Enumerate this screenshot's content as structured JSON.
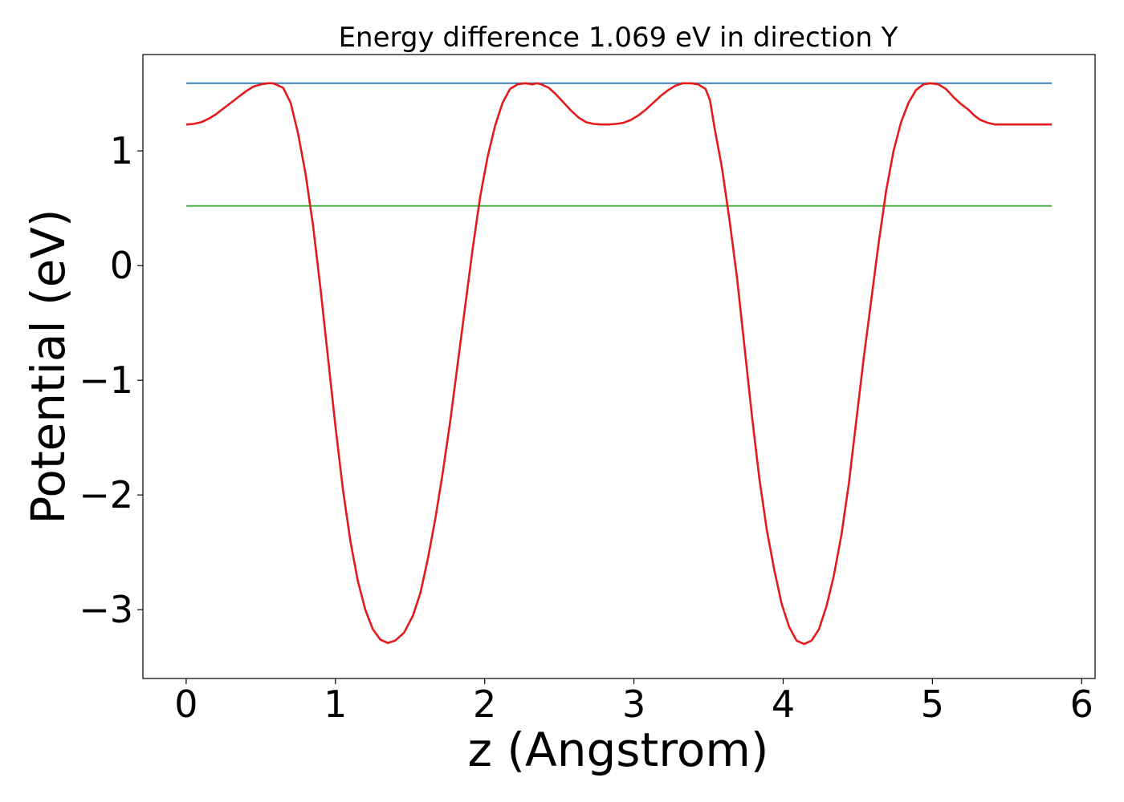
{
  "chart_data": {
    "type": "line",
    "title": "Energy difference 1.069 eV in direction Y",
    "xlabel": "z (Angstrom)",
    "ylabel": "Potential (eV)",
    "xlim": [
      -0.29,
      6.09
    ],
    "ylim": [
      -3.6,
      1.84
    ],
    "xticks": [
      0,
      1,
      2,
      3,
      4,
      5,
      6
    ],
    "xtick_labels": [
      "0",
      "1",
      "2",
      "3",
      "4",
      "5",
      "6"
    ],
    "yticks": [
      -3,
      -2,
      -1,
      0,
      1
    ],
    "ytick_labels": [
      "−3",
      "−2",
      "−1",
      "0",
      "1"
    ],
    "grid": false,
    "series": [
      {
        "color": "#e41a1c",
        "x": [
          0.0,
          0.05,
          0.1,
          0.15,
          0.2,
          0.25,
          0.3,
          0.35,
          0.4,
          0.45,
          0.5,
          0.55,
          0.58,
          0.6,
          0.65,
          0.7,
          0.75,
          0.8,
          0.85,
          0.9,
          0.95,
          1.0,
          1.05,
          1.1,
          1.15,
          1.2,
          1.25,
          1.3,
          1.35,
          1.4,
          1.46,
          1.52,
          1.57,
          1.62,
          1.67,
          1.72,
          1.77,
          1.82,
          1.87,
          1.92,
          1.97,
          2.02,
          2.07,
          2.12,
          2.17,
          2.22,
          2.27,
          2.32,
          2.35,
          2.38,
          2.43,
          2.48,
          2.53,
          2.58,
          2.63,
          2.68,
          2.73,
          2.78,
          2.83,
          2.88,
          2.93,
          2.98,
          3.03,
          3.08,
          3.13,
          3.18,
          3.23,
          3.28,
          3.33,
          3.38,
          3.43,
          3.48,
          3.51,
          3.54,
          3.59,
          3.64,
          3.69,
          3.74,
          3.79,
          3.84,
          3.89,
          3.94,
          3.99,
          4.04,
          4.09,
          4.14,
          4.19,
          4.24,
          4.29,
          4.34,
          4.39,
          4.44,
          4.49,
          4.54,
          4.59,
          4.64,
          4.69,
          4.74,
          4.79,
          4.84,
          4.89,
          4.94,
          4.99,
          5.04,
          5.09,
          5.14,
          5.19,
          5.24,
          5.28,
          5.32,
          5.37,
          5.42,
          5.47,
          5.52,
          5.57,
          5.62,
          5.67,
          5.72,
          5.77,
          5.8
        ],
        "values": [
          1.23,
          1.235,
          1.25,
          1.28,
          1.32,
          1.37,
          1.42,
          1.47,
          1.52,
          1.56,
          1.58,
          1.59,
          1.59,
          1.58,
          1.55,
          1.42,
          1.15,
          0.8,
          0.35,
          -0.2,
          -0.8,
          -1.4,
          -1.95,
          -2.4,
          -2.75,
          -3.0,
          -3.17,
          -3.26,
          -3.29,
          -3.27,
          -3.2,
          -3.05,
          -2.85,
          -2.55,
          -2.2,
          -1.8,
          -1.35,
          -0.85,
          -0.35,
          0.15,
          0.6,
          0.95,
          1.22,
          1.42,
          1.54,
          1.58,
          1.59,
          1.58,
          1.59,
          1.58,
          1.55,
          1.49,
          1.42,
          1.35,
          1.29,
          1.25,
          1.235,
          1.23,
          1.23,
          1.235,
          1.245,
          1.27,
          1.31,
          1.36,
          1.42,
          1.48,
          1.53,
          1.57,
          1.59,
          1.59,
          1.58,
          1.54,
          1.44,
          1.2,
          0.85,
          0.4,
          -0.1,
          -0.7,
          -1.3,
          -1.85,
          -2.3,
          -2.65,
          -2.95,
          -3.15,
          -3.27,
          -3.3,
          -3.27,
          -3.17,
          -2.97,
          -2.7,
          -2.35,
          -1.9,
          -1.35,
          -0.8,
          -0.3,
          0.2,
          0.65,
          1.0,
          1.25,
          1.42,
          1.53,
          1.58,
          1.59,
          1.58,
          1.54,
          1.47,
          1.41,
          1.36,
          1.31,
          1.27,
          1.245,
          1.23,
          1.23,
          1.23,
          1.23,
          1.23,
          1.23,
          1.23,
          1.23,
          1.23
        ]
      },
      {
        "color": "#377eb8",
        "x": [
          0.0,
          5.8
        ],
        "values": [
          1.59,
          1.59
        ]
      },
      {
        "color": "#4daf4a",
        "x": [
          0.0,
          5.8
        ],
        "values": [
          0.52,
          0.52
        ]
      }
    ]
  }
}
